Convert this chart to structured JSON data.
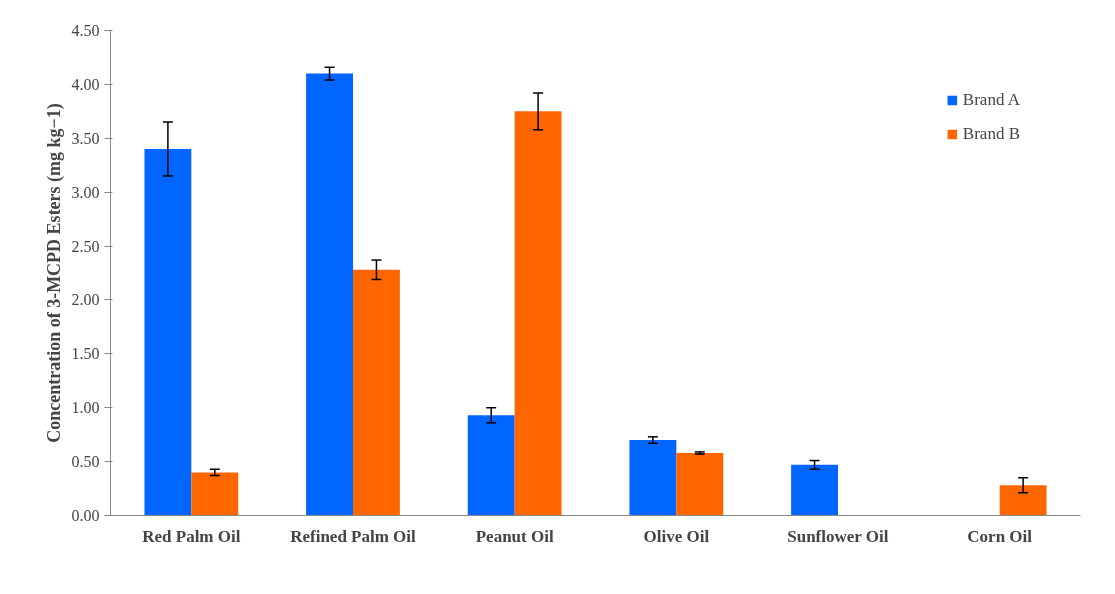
{
  "chart_data": {
    "type": "bar",
    "ylabel": "Concentration of 3-MCPD Esters (mg kg−1)",
    "categories": [
      "Red Palm Oil",
      "Refined Palm Oil",
      "Peanut Oil",
      "Olive Oil",
      "Sunflower Oil",
      "Corn Oil"
    ],
    "series": [
      {
        "name": "Brand A",
        "color": "#0066ff",
        "values": [
          3.4,
          4.1,
          0.93,
          0.7,
          0.47,
          0
        ],
        "errors": [
          0.25,
          0.06,
          0.07,
          0.03,
          0.04,
          null
        ]
      },
      {
        "name": "Brand B",
        "color": "#ff6600",
        "values": [
          0.4,
          2.28,
          3.75,
          0.58,
          0,
          0.28
        ],
        "errors": [
          0.03,
          0.09,
          0.17,
          0.01,
          null,
          0.07
        ]
      }
    ],
    "ylim": [
      0,
      4.5
    ],
    "yticks": [
      {
        "value": 0,
        "label": "0.00"
      },
      {
        "value": 0.5,
        "label": "0.50"
      },
      {
        "value": 1,
        "label": "1.00"
      },
      {
        "value": 1.5,
        "label": "1.50"
      },
      {
        "value": 2,
        "label": "2.00"
      },
      {
        "value": 2.5,
        "label": "2.50"
      },
      {
        "value": 3,
        "label": "3.00"
      },
      {
        "value": 3.5,
        "label": "3.50"
      },
      {
        "value": 4,
        "label": "4.00"
      },
      {
        "value": 4.5,
        "label": "4.50"
      }
    ],
    "grid": false,
    "legend": "top right"
  }
}
